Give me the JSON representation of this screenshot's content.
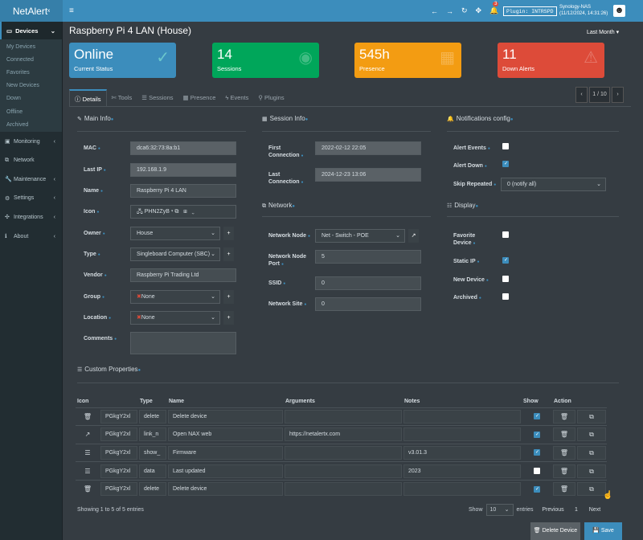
{
  "app": {
    "logo": "NetAlert",
    "logo_sup": "x",
    "menu_icon": "≡"
  },
  "topbar": {
    "notify_count": "3",
    "plugin_label": "Plugin: INTRSPD",
    "server_name": "Synology-NAS",
    "server_time": "(11/12/2024, 14:31:26)"
  },
  "sidebar": {
    "devices_label": "Devices",
    "device_items": [
      "My Devices",
      "Connected",
      "Favorites",
      "New Devices",
      "Down",
      "Offline",
      "Archived"
    ],
    "menu": [
      "Monitoring",
      "Network",
      "Maintenance",
      "Settings",
      "Integrations",
      "About"
    ]
  },
  "page": {
    "title": "Raspberry Pi 4 LAN (House)",
    "period": "Last Month"
  },
  "cards": [
    {
      "value": "Online",
      "label": "Current Status",
      "color": "#3c8dbc",
      "icon": "✓"
    },
    {
      "value": "14",
      "label": "Sessions",
      "color": "#00a65a",
      "icon": "◉"
    },
    {
      "value": "545h",
      "label": "Presence",
      "color": "#f39c12",
      "icon": "▦"
    },
    {
      "value": "11",
      "label": "Down Alerts",
      "color": "#dd4b39",
      "icon": "⚠"
    }
  ],
  "tabs": [
    "Details",
    "Tools",
    "Sessions",
    "Presence",
    "Events",
    "Plugins"
  ],
  "pager": {
    "prev": "‹",
    "count": "1 / 10",
    "next": "›"
  },
  "main_info": {
    "title": "Main Info",
    "mac_label": "MAC",
    "mac": "dca6:32:73:8a:b1",
    "lastip_label": "Last IP",
    "lastip": "192.168.1.9",
    "name_label": "Name",
    "name": "Raspberry Pi 4 LAN",
    "icon_label": "Icon",
    "icon_value": "PHN2ZyB",
    "owner_label": "Owner",
    "owner": "House",
    "type_label": "Type",
    "type": "Singleboard Computer (SBC)",
    "vendor_label": "Vendor",
    "vendor": "Raspberry Pi Trading Ltd",
    "group_label": "Group",
    "group": "None",
    "location_label": "Location",
    "location": "None",
    "comments_label": "Comments",
    "comments": ""
  },
  "session_info": {
    "title": "Session Info",
    "first_label": "First Connection",
    "first": "2022-02-12  22:05",
    "last_label": "Last Connection",
    "last": "2024-12-23  13:06"
  },
  "network": {
    "title": "Network",
    "node_label": "Network Node",
    "node": "Net - Switch - POE",
    "port_label": "Network Node Port",
    "port": "5",
    "ssid_label": "SSID",
    "ssid": "0",
    "site_label": "Network Site",
    "site": "0"
  },
  "notifications": {
    "title": "Notifications config",
    "alert_events_label": "Alert Events",
    "alert_events": false,
    "alert_down_label": "Alert Down",
    "alert_down": true,
    "skip_label": "Skip Repeated",
    "skip": "0 (notify all)"
  },
  "display": {
    "title": "Display",
    "favorite_label": "Favorite Device",
    "favorite": false,
    "static_label": "Static IP",
    "static": true,
    "new_label": "New Device",
    "new": false,
    "archived_label": "Archived",
    "archived": false
  },
  "custom": {
    "title": "Custom Properties",
    "headers": [
      "Icon",
      "Type",
      "Name",
      "Arguments",
      "Notes",
      "Show",
      "Action"
    ],
    "rows": [
      {
        "rowicon": "🗑",
        "icon": "PGkgY2xl",
        "type": "delete",
        "name": "Delete device",
        "args": "",
        "notes": "",
        "show": true
      },
      {
        "rowicon": "↗",
        "icon": "PGkgY2xl",
        "type": "link_n",
        "name": "Open NAX web",
        "args": "https://netalertx.com",
        "notes": "",
        "show": true
      },
      {
        "rowicon": "☰",
        "icon": "PGkgY2xl",
        "type": "show_",
        "name": "Firmware",
        "args": "",
        "notes": "v3.01.3",
        "show": true
      },
      {
        "rowicon": "☰",
        "icon": "PGkgY2xl",
        "type": "data",
        "name": "Last updated",
        "args": "",
        "notes": "2023",
        "show": false
      },
      {
        "rowicon": "🗑",
        "icon": "PGkgY2xl",
        "type": "delete",
        "name": "Delete device",
        "args": "",
        "notes": "",
        "show": true
      }
    ],
    "info": "Showing 1 to 5 of 5 entries",
    "show_label": "Show",
    "show_value": "10",
    "entries_label": "entries",
    "prev": "Previous",
    "page": "1",
    "next": "Next"
  },
  "actions": {
    "delete": "Delete Device",
    "save": "Save"
  }
}
